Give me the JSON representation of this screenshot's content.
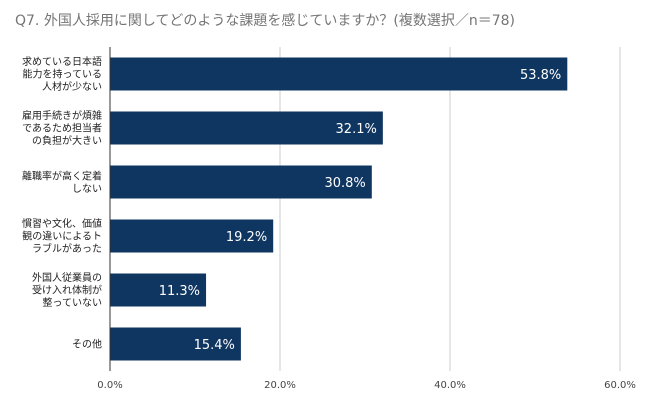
{
  "colors": {
    "bar": "#0f3561",
    "grid": "#cccccc",
    "axis": "#333333"
  },
  "chart_data": {
    "type": "bar",
    "orientation": "horizontal",
    "title": "Q7. 外国人採用に関してどのような課題を感じていますか？(複数選択／n＝78)",
    "categories": [
      [
        "求めている日本語",
        "能力を持っている",
        "人材が少ない"
      ],
      [
        "雇用手続きが煩雑",
        "であるため担当者",
        "の負担が大きい"
      ],
      [
        "離職率が高く定着",
        "しない"
      ],
      [
        "慣習や文化、価値",
        "観の違いによるト",
        "ラブルがあった"
      ],
      [
        "外国人従業員の",
        "受け入れ体制が",
        "整っていない"
      ],
      [
        "その他"
      ]
    ],
    "values": [
      53.8,
      32.1,
      30.8,
      19.2,
      11.3,
      15.4
    ],
    "value_labels": [
      "53.8%",
      "32.1%",
      "30.8%",
      "19.2%",
      "11.3%",
      "15.4%"
    ],
    "xlim": [
      0,
      60
    ],
    "xticks": [
      0,
      20,
      40,
      60
    ],
    "xtick_labels": [
      "0.0%",
      "20.0%",
      "40.0%",
      "60.0%"
    ],
    "grid": "vertical",
    "legend": "none"
  }
}
